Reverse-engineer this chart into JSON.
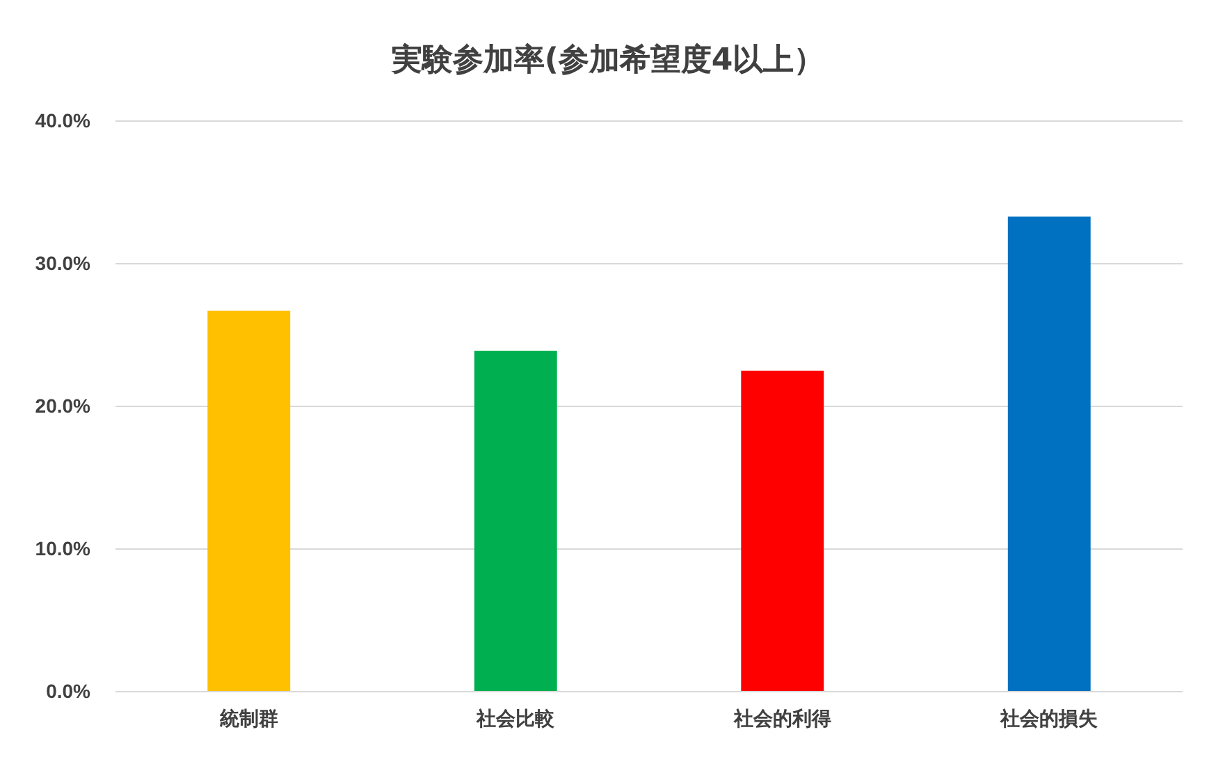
{
  "chart_data": {
    "type": "bar",
    "title": "実験参加率(参加希望度4以上）",
    "categories": [
      "統制群",
      "社会比較",
      "社会的利得",
      "社会的損失"
    ],
    "values": [
      26.7,
      23.9,
      22.5,
      33.3
    ],
    "colors": [
      "#ffc000",
      "#00b050",
      "#ff0000",
      "#0070c0"
    ],
    "ylim": [
      0,
      40
    ],
    "yticks": [
      {
        "value": 0,
        "label": "0.0%"
      },
      {
        "value": 10,
        "label": "10.0%"
      },
      {
        "value": 20,
        "label": "20.0%"
      },
      {
        "value": 30,
        "label": "30.0%"
      },
      {
        "value": 40,
        "label": "40.0%"
      }
    ],
    "grid": "y"
  }
}
